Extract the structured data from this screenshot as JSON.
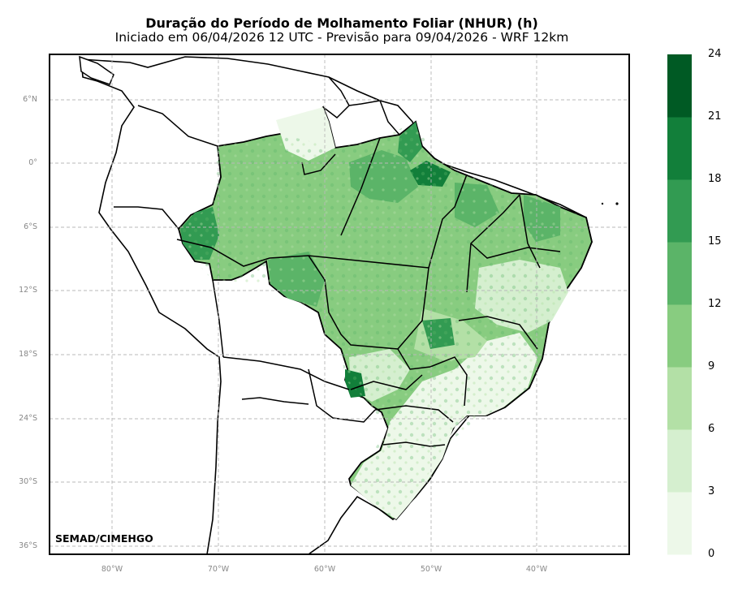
{
  "title": "Duração do Período de Molhamento Foliar (NHUR) (h)",
  "subtitle": "Iniciado em 06/04/2026 12 UTC - Previsão para 09/04/2026 - WRF 12km",
  "credit": "SEMAD/CIMEHGO",
  "axes": {
    "lat_ticks": [
      "6°N",
      "0°",
      "6°S",
      "12°S",
      "18°S",
      "24°S",
      "30°S",
      "36°S"
    ],
    "lon_ticks": [
      "80°W",
      "70°W",
      "60°W",
      "50°W",
      "40°W"
    ],
    "grid": "dashed"
  },
  "colorbar": {
    "ticks": [
      "0",
      "3",
      "6",
      "9",
      "12",
      "15",
      "18",
      "21",
      "24"
    ],
    "colors": [
      "#edf8e9",
      "#d5efcf",
      "#b3e0a6",
      "#88cc80",
      "#5bb468",
      "#329b52",
      "#127f3a",
      "#005a24"
    ]
  }
}
